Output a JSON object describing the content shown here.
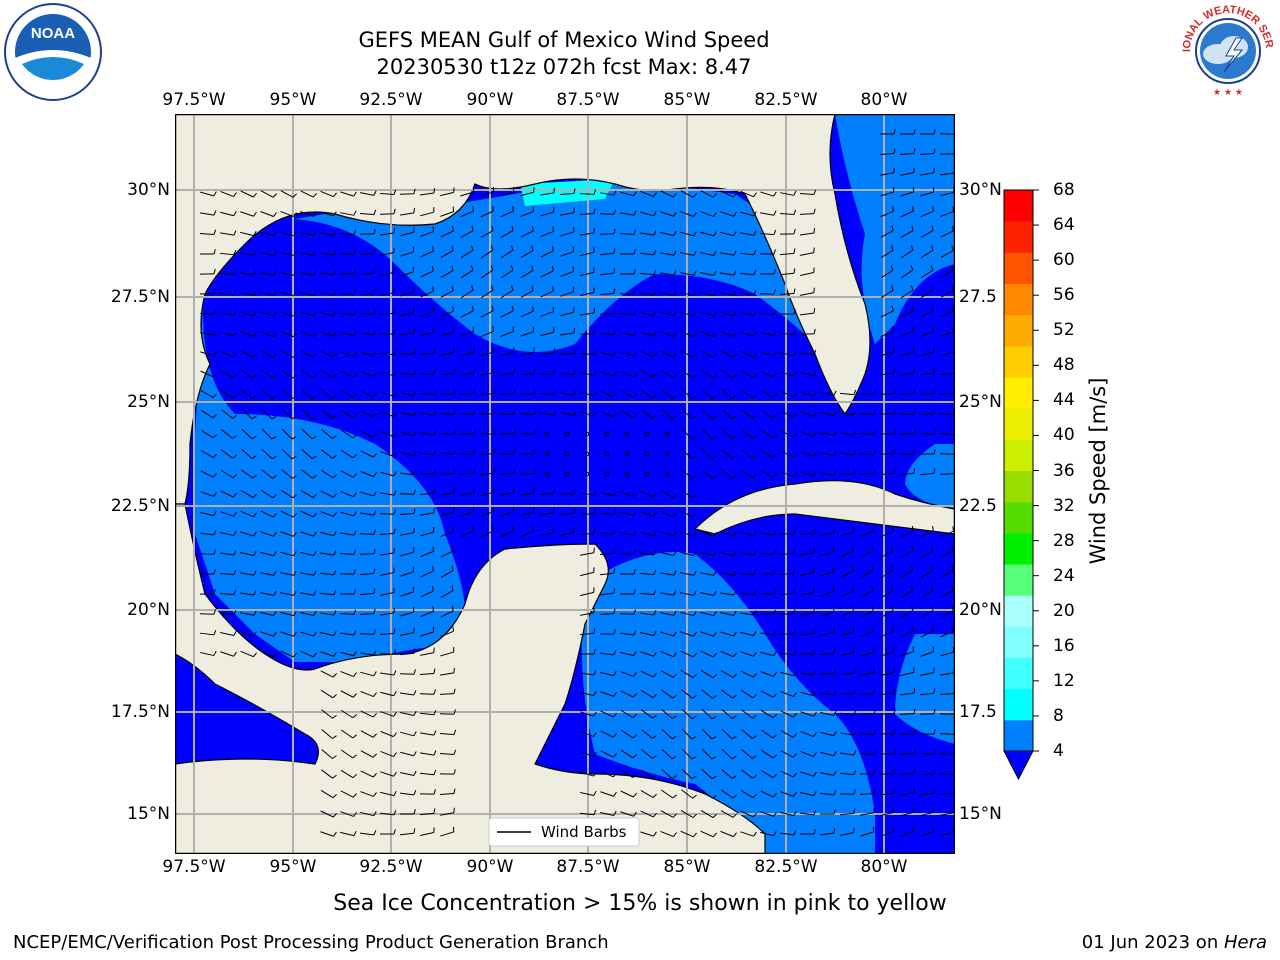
{
  "header": {
    "title_line1": "GEFS MEAN Gulf of Mexico Wind Speed",
    "title_line2": "20230530 t12z 072h fcst   Max: 8.47"
  },
  "logos": {
    "left": {
      "text": "NOAA",
      "icon": "noaa-logo"
    },
    "right": {
      "text": "NATIONAL WEATHER SERVICE",
      "icon": "nws-logo"
    }
  },
  "map": {
    "lon_ticks": [
      "97.5°W",
      "95°W",
      "92.5°W",
      "90°W",
      "87.5°W",
      "85°W",
      "82.5°W",
      "80°W"
    ],
    "lat_ticks_left": [
      "30°N",
      "27.5°N",
      "25°N",
      "22.5°N",
      "20°N",
      "17.5°N",
      "15°N"
    ],
    "lat_ticks_right": [
      "30°N",
      "27.5",
      "25°N",
      "22.5",
      "20°N",
      "17.5",
      "15°N"
    ],
    "legend_label": "Wind Barbs",
    "colors": {
      "land": "#eeeddf",
      "wind_4_8": "#0080ff",
      "wind_below_4": "#0000ff",
      "wind_8_12": "#00ffff",
      "grid": "#b0b0b0"
    }
  },
  "colorbar": {
    "label": "Wind Speed [m/s]",
    "ticks": [
      "68",
      "64",
      "60",
      "56",
      "52",
      "48",
      "44",
      "40",
      "36",
      "32",
      "28",
      "24",
      "20",
      "16",
      "12",
      "8",
      "4"
    ],
    "colors_bottom_to_top": [
      "#0080ff",
      "#00ffff",
      "#40ffff",
      "#80ffff",
      "#aaffff",
      "#55ff77",
      "#00ee00",
      "#55dd00",
      "#99dd00",
      "#ccee00",
      "#eeee00",
      "#ffee00",
      "#ffcc00",
      "#ffaa00",
      "#ff8800",
      "#ff5500",
      "#ff2200",
      "#ff0000"
    ],
    "extend_color": "#0000ff"
  },
  "caption": "Sea Ice Concentration > 15% is shown in pink to yellow",
  "footer": {
    "left": "NCEP/EMC/Verification Post Processing Product Generation Branch",
    "right_date": "01 Jun 2023 on ",
    "right_host": "Hera"
  }
}
